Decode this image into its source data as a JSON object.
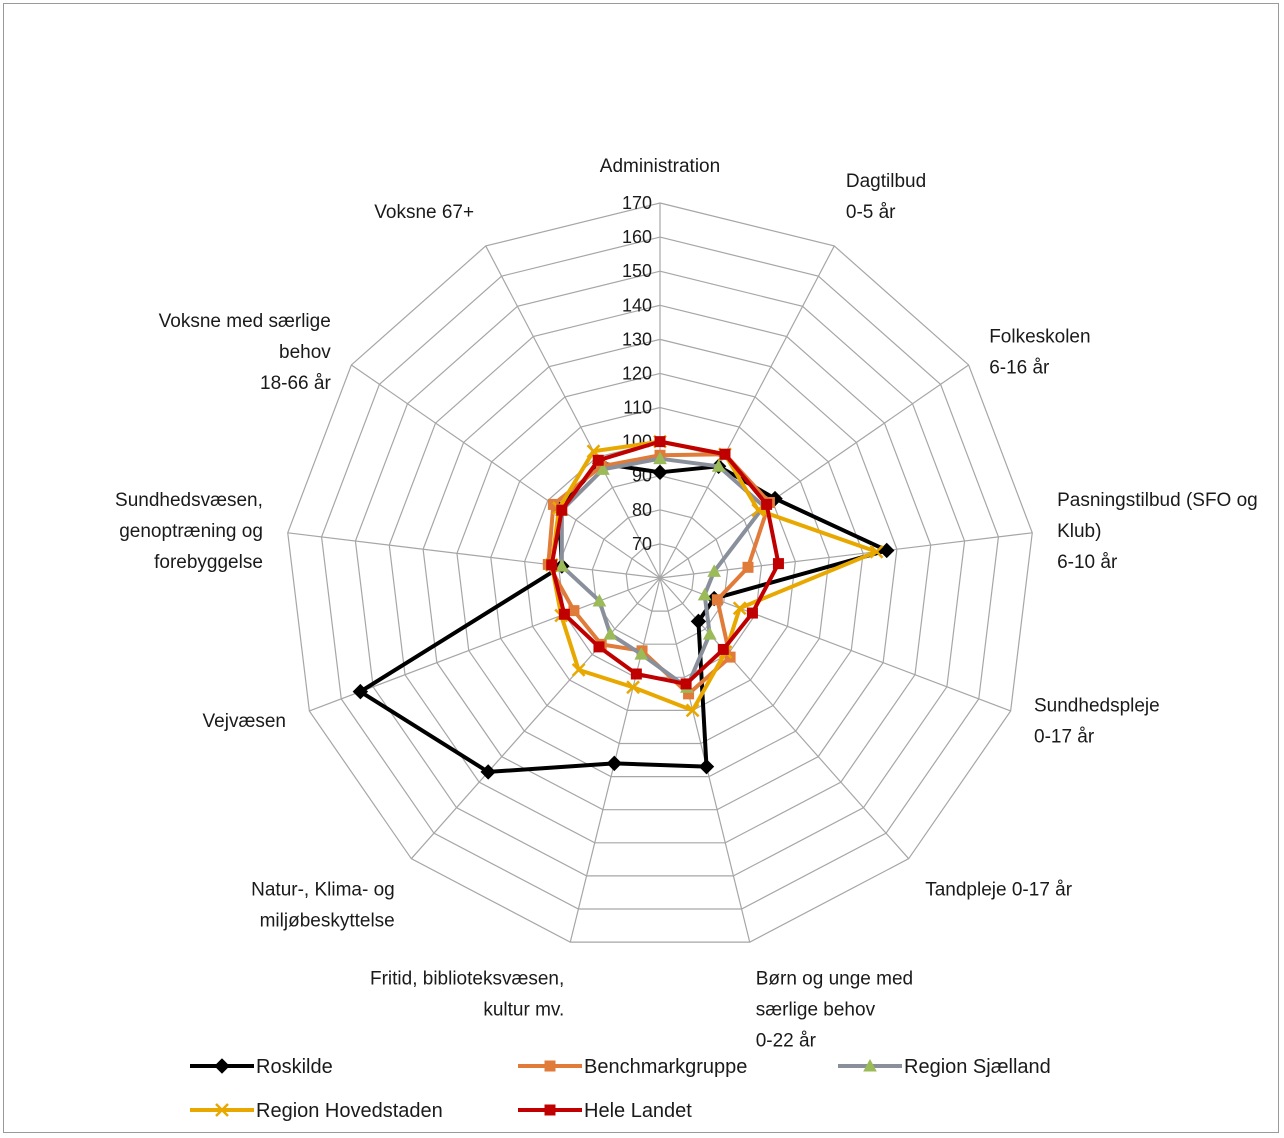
{
  "chart_data": {
    "type": "radar",
    "title": "",
    "categories": [
      [
        "Administration"
      ],
      [
        "Dagtilbud",
        "0-5 år"
      ],
      [
        "Folkeskolen",
        "6-16 år"
      ],
      [
        "Pasningstilbud (SFO og",
        "Klub)",
        "6-10 år"
      ],
      [
        "Sundhedspleje",
        "0-17 år"
      ],
      [
        "Tandpleje 0-17 år"
      ],
      [
        "Børn og unge med",
        "særlige behov",
        "0-22 år"
      ],
      [
        "Fritid, biblioteksvæsen,",
        "kultur mv."
      ],
      [
        "Natur-, Klima- og",
        "miljøbeskyttelse"
      ],
      [
        "Vejvæsen"
      ],
      [
        "Sundhedsvæsen,",
        "genoptræning og",
        "forebyggelse"
      ],
      [
        "Voksne med særlige",
        "behov",
        "18-66 år"
      ],
      [
        "Voksne 67+"
      ]
    ],
    "rlim": [
      60,
      170
    ],
    "ticks": [
      70,
      80,
      90,
      100,
      110,
      120,
      130,
      140,
      150,
      160,
      170
    ],
    "tick_labels": [
      "70",
      "80",
      "90",
      "100",
      "110",
      "120",
      "130",
      "140",
      "150",
      "160",
      "170"
    ],
    "series": [
      {
        "name": "Roskilde",
        "color": "#000000",
        "marker": "diamond",
        "values": [
          91,
          97,
          101,
          127,
          77,
          77,
          117,
          116,
          136,
          154,
          89,
          96,
          98
        ]
      },
      {
        "name": "Benchmarkgruppe",
        "color": "#e07b39",
        "marker": "square",
        "values": [
          96,
          101,
          99,
          86,
          78,
          91,
          95,
          82,
          86,
          87,
          93,
          98,
          97
        ]
      },
      {
        "name": "Region Sjælland",
        "color": "#8a8f9c",
        "marker": "triangle",
        "values": [
          95,
          97,
          97,
          76,
          74,
          82,
          93,
          83,
          82,
          79,
          89,
          95,
          96
        ]
      },
      {
        "name": "Region Hovedstaden",
        "color": "#e8a800",
        "marker": "x",
        "values": [
          100,
          101,
          95,
          124,
          85,
          89,
          100,
          93,
          96,
          91,
          92,
          96,
          102
        ]
      },
      {
        "name": "Hele Landet",
        "color": "#c00000",
        "marker": "square",
        "values": [
          100,
          101,
          98,
          95,
          89,
          88,
          92,
          89,
          87,
          90,
          92,
          95,
          99
        ]
      }
    ],
    "legend_position": "bottom"
  }
}
